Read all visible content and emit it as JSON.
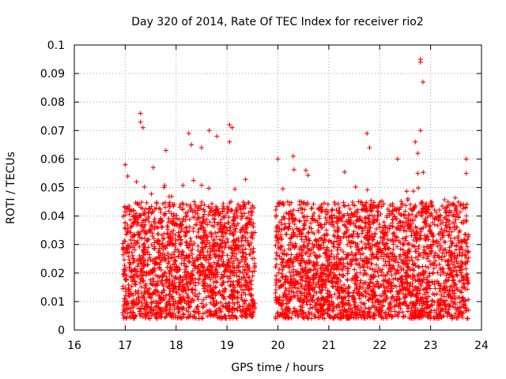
{
  "chart_data": {
    "type": "scatter",
    "title": "Day 320 of 2014, Rate Of TEC Index for receiver rio2",
    "xlabel": "GPS time / hours",
    "ylabel": "ROTI / TECUs",
    "xlim": [
      16,
      24
    ],
    "ylim": [
      0,
      0.1
    ],
    "xticks": [
      16,
      17,
      18,
      19,
      20,
      21,
      22,
      23,
      24
    ],
    "yticks": [
      0,
      0.01,
      0.02,
      0.03,
      0.04,
      0.05,
      0.06,
      0.07,
      0.08,
      0.09,
      0.1
    ],
    "xtick_labels": [
      "16",
      "17",
      "18",
      "19",
      "20",
      "21",
      "22",
      "23",
      "24"
    ],
    "ytick_labels": [
      "0",
      "0.01",
      "0.02",
      "0.03",
      "0.04",
      "0.05",
      "0.06",
      "0.07",
      "0.08",
      "0.09",
      "0.1"
    ],
    "grid": true,
    "marker": "+",
    "color": "#ff0000",
    "series": [
      {
        "name": "ROTI",
        "segments": [
          {
            "x_start": 16.95,
            "x_end": 19.55
          },
          {
            "x_start": 19.95,
            "x_end": 23.75
          }
        ],
        "points": [
          [
            17.0,
            0.058
          ],
          [
            17.05,
            0.054
          ],
          [
            17.3,
            0.076
          ],
          [
            17.3,
            0.073
          ],
          [
            17.35,
            0.071
          ],
          [
            17.55,
            0.057
          ],
          [
            17.8,
            0.063
          ],
          [
            18.25,
            0.069
          ],
          [
            18.3,
            0.065
          ],
          [
            18.5,
            0.064
          ],
          [
            18.65,
            0.07
          ],
          [
            18.8,
            0.068
          ],
          [
            19.05,
            0.072
          ],
          [
            19.05,
            0.066
          ],
          [
            19.1,
            0.071
          ],
          [
            20.0,
            0.06
          ],
          [
            20.3,
            0.061
          ],
          [
            20.55,
            0.056
          ],
          [
            21.75,
            0.069
          ],
          [
            21.8,
            0.064
          ],
          [
            22.35,
            0.06
          ],
          [
            22.7,
            0.066
          ],
          [
            22.8,
            0.095
          ],
          [
            22.8,
            0.094
          ],
          [
            22.85,
            0.087
          ],
          [
            22.8,
            0.07
          ],
          [
            22.75,
            0.062
          ],
          [
            22.75,
            0.055
          ],
          [
            23.7,
            0.06
          ],
          [
            23.7,
            0.055
          ]
        ],
        "value_range_bulk": [
          0.004,
          0.045
        ]
      }
    ]
  }
}
